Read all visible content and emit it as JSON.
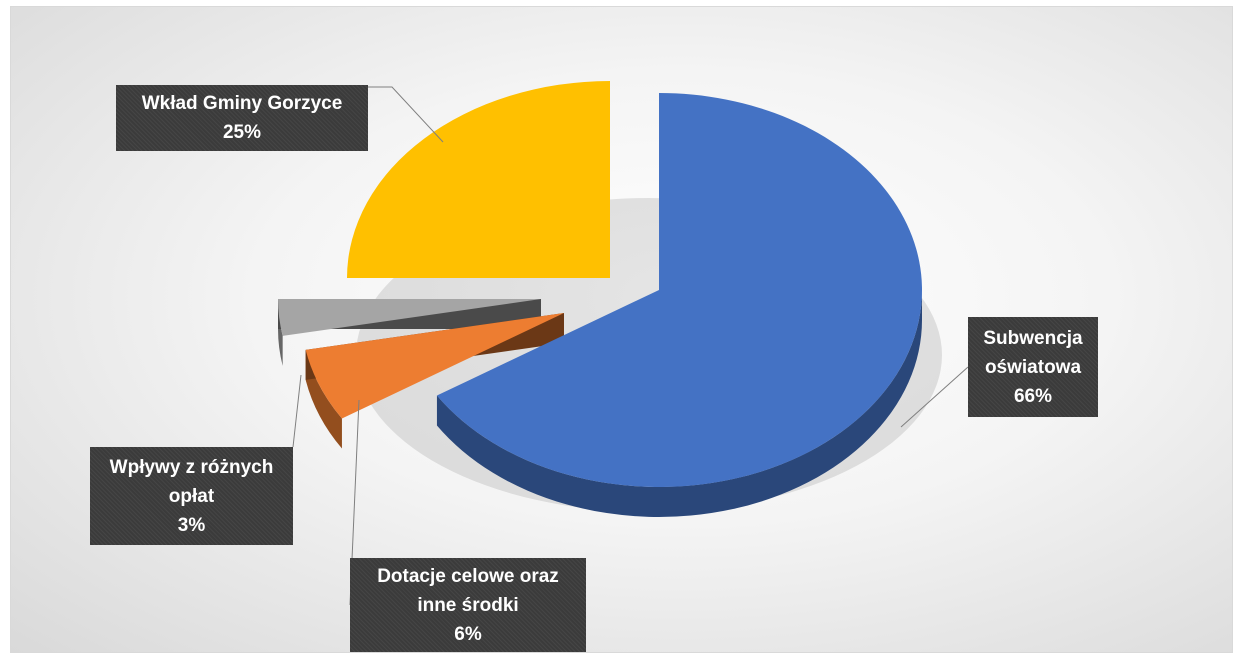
{
  "chart_data": {
    "type": "pie",
    "title": "",
    "slices": [
      {
        "name": "Subwencja oświatowa",
        "value": 66,
        "label_lines": [
          "Subwencja",
          "oświatowa"
        ],
        "pct_text": "66%",
        "color": "#4472c4"
      },
      {
        "name": "Dotacje celowe oraz inne środki",
        "value": 6,
        "label_lines": [
          "Dotacje celowe oraz",
          "inne środki"
        ],
        "pct_text": "6%",
        "color": "#ed7d31"
      },
      {
        "name": "Wpływy z różnych opłat",
        "value": 3,
        "label_lines": [
          "Wpływy z różnych",
          "opłat"
        ],
        "pct_text": "3%",
        "color": "#a5a5a5"
      },
      {
        "name": "Wkład Gminy Gorzyce",
        "value": 25,
        "label_lines": [
          "Wkład Gminy Gorzyce"
        ],
        "pct_text": "25%",
        "color": "#ffc000"
      }
    ],
    "style": "3d-exploded",
    "legend": "none",
    "data_labels": "callout"
  }
}
